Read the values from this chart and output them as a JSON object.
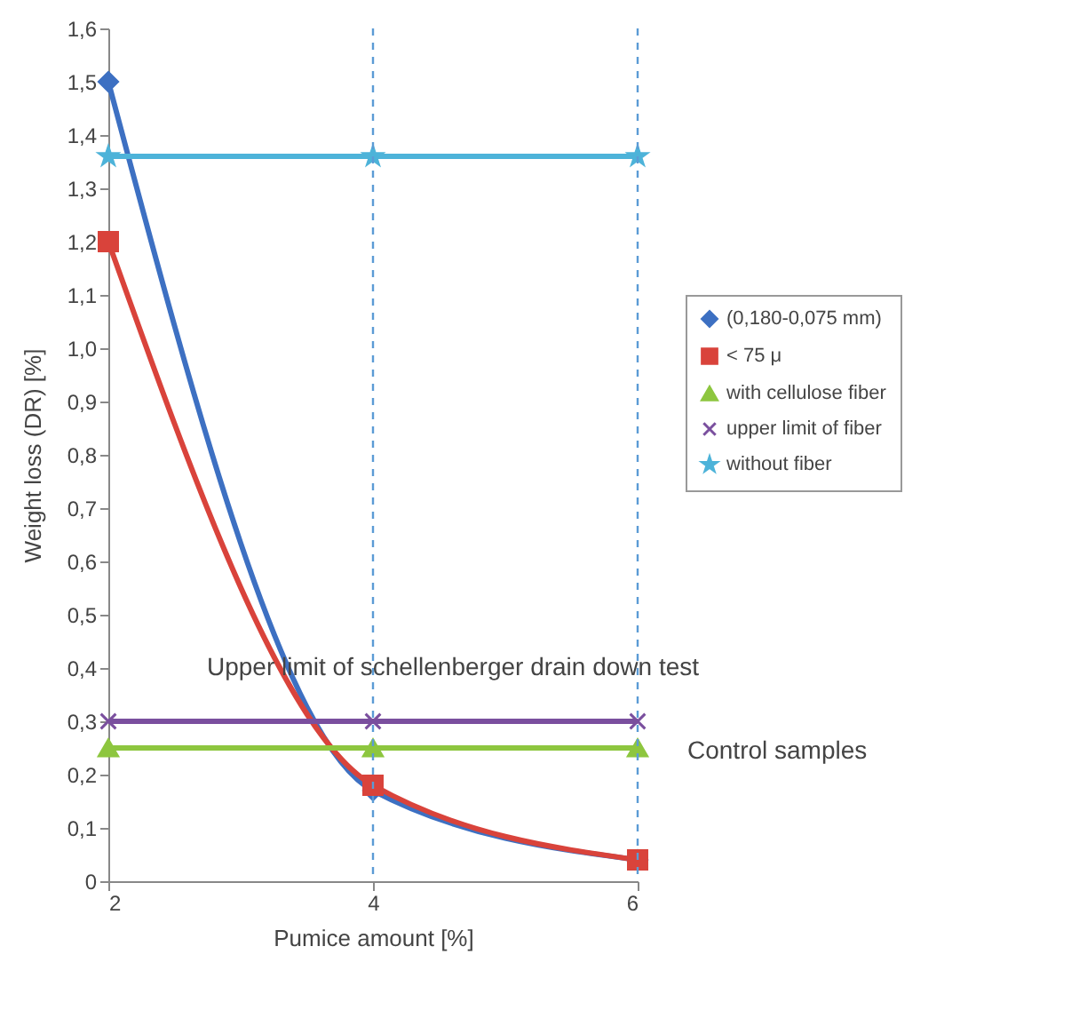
{
  "chart_data": {
    "type": "line",
    "xlabel": "Pumice amount [%]",
    "ylabel": "Weight loss (DR) [%]",
    "x": [
      2,
      4,
      6
    ],
    "xlim": [
      2,
      6
    ],
    "xticks": [
      2,
      4,
      6
    ],
    "ylim": [
      0,
      1.6
    ],
    "yticks": [
      {
        "value": 0,
        "label": "0"
      },
      {
        "value": 0.1,
        "label": "0,1"
      },
      {
        "value": 0.2,
        "label": "0,2"
      },
      {
        "value": 0.3,
        "label": "0,3"
      },
      {
        "value": 0.4,
        "label": "0,4"
      },
      {
        "value": 0.5,
        "label": "0,5"
      },
      {
        "value": 0.6,
        "label": "0,6"
      },
      {
        "value": 0.7,
        "label": "0,7"
      },
      {
        "value": 0.8,
        "label": "0,8"
      },
      {
        "value": 0.9,
        "label": "0,9"
      },
      {
        "value": 1.0,
        "label": "1,0"
      },
      {
        "value": 1.1,
        "label": "1,1"
      },
      {
        "value": 1.2,
        "label": "1,2"
      },
      {
        "value": 1.3,
        "label": "1,3"
      },
      {
        "value": 1.4,
        "label": "1,4"
      },
      {
        "value": 1.5,
        "label": "1,5"
      },
      {
        "value": 1.6,
        "label": "1,6"
      }
    ],
    "grid": false,
    "legend": "right",
    "series": [
      {
        "name": "(0,180-0,075 mm)",
        "color": "#3d70c2",
        "marker": "diamond",
        "values": [
          1.5,
          0.17,
          0.04
        ]
      },
      {
        "name": "< 75 μ",
        "color": "#d9433b",
        "marker": "square",
        "values": [
          1.2,
          0.18,
          0.04
        ]
      },
      {
        "name": "with cellulose fiber",
        "color": "#8dc63f",
        "marker": "triangle",
        "values": [
          0.25,
          0.25,
          0.25
        ]
      },
      {
        "name": "upper limit of fiber",
        "color": "#7a4f9e",
        "marker": "cross",
        "values": [
          0.3,
          0.3,
          0.3
        ]
      },
      {
        "name": "without fiber",
        "color": "#4db3d9",
        "marker": "star",
        "values": [
          1.36,
          1.36,
          1.36
        ]
      }
    ],
    "ref_lines": [
      {
        "axis": "x",
        "value": 4,
        "color": "#5b9bd5",
        "line_style": "dashed"
      },
      {
        "axis": "x",
        "value": 6,
        "color": "#5b9bd5",
        "line_style": "dashed"
      }
    ],
    "annotations": [
      {
        "text": "Upper limit of schellenberger drain down test",
        "x": 4,
        "y": 0.3
      },
      {
        "text": "Control samples",
        "x": 6,
        "y": 0.25
      }
    ]
  }
}
